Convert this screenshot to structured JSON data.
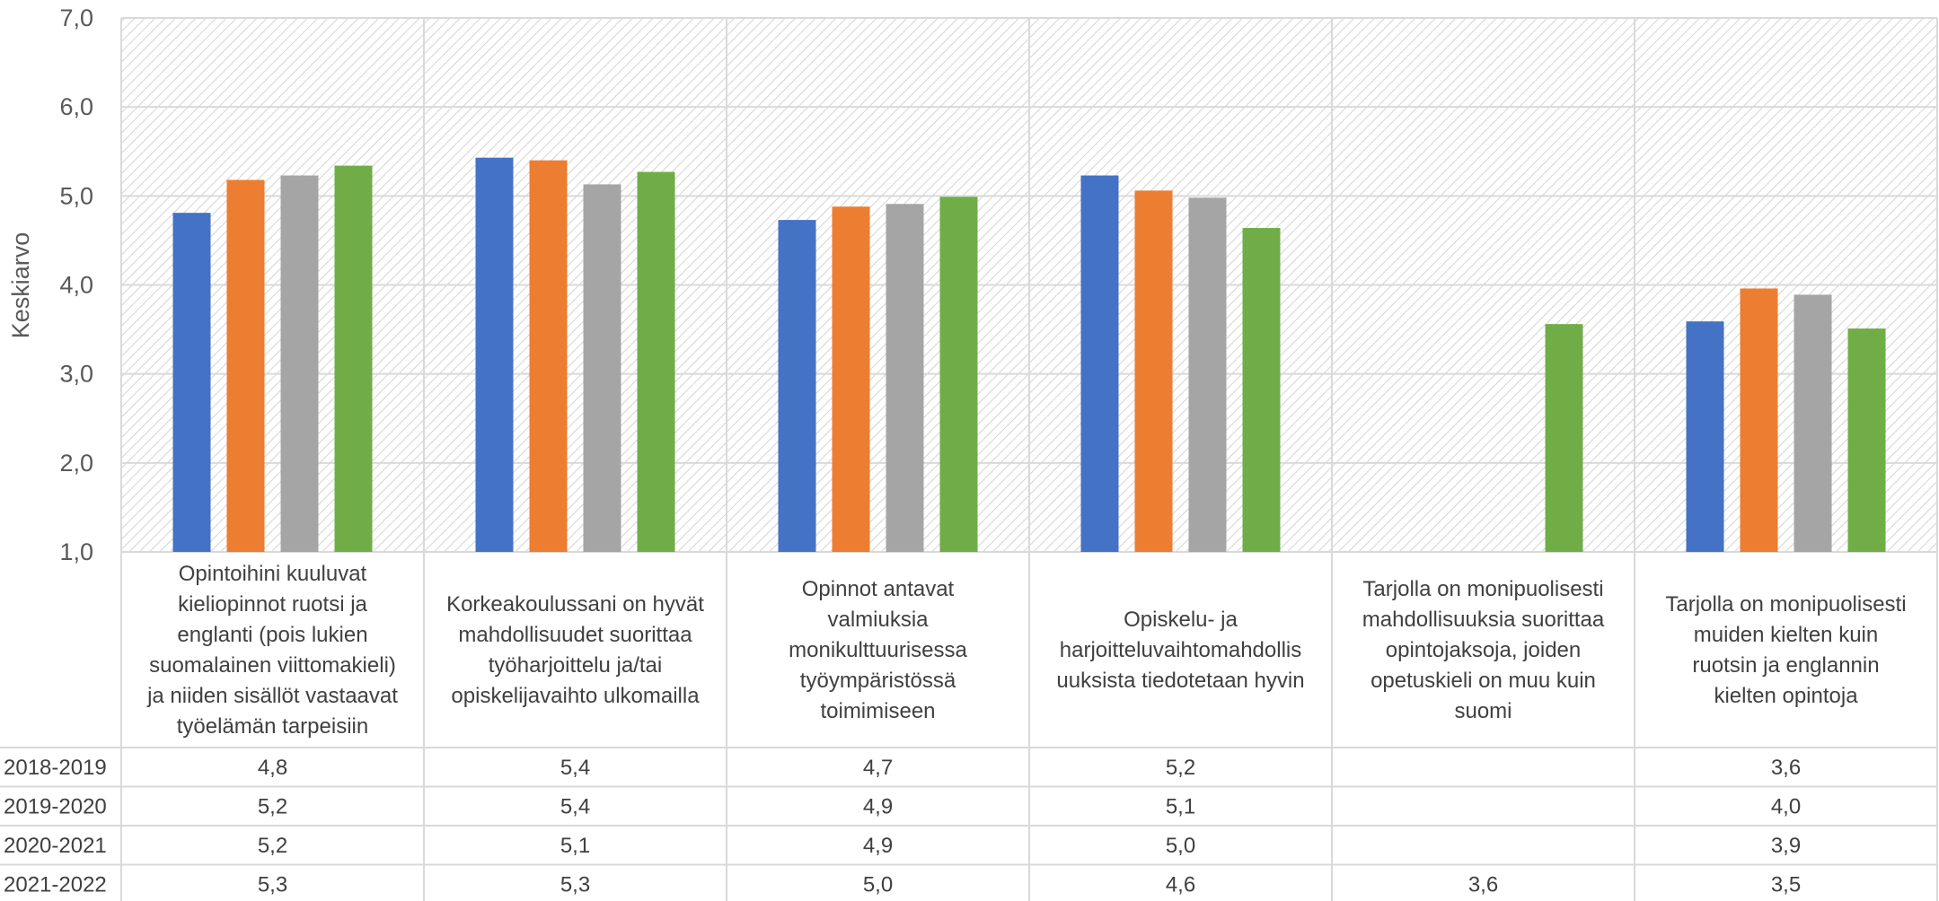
{
  "chart_data": {
    "type": "bar",
    "ylabel": "Keskiarvo",
    "ylim": [
      1.0,
      7.0
    ],
    "yticks": [
      "1,0",
      "2,0",
      "3,0",
      "4,0",
      "5,0",
      "6,0",
      "7,0"
    ],
    "grid": true,
    "categories": [
      [
        "Opintoihini kuuluvat",
        "kieliopinnot ruotsi ja",
        "englanti (pois lukien",
        "suomalainen viittomakieli)",
        "ja niiden sisällöt vastaavat",
        "työelämän tarpeisiin"
      ],
      [
        "Korkeakoulussani on hyvät",
        "mahdollisuudet suorittaa",
        "työharjoittelu ja/tai",
        "opiskelijavaihto ulkomailla"
      ],
      [
        "Opinnot antavat",
        "valmiuksia",
        "monikulttuurisessa",
        "työympäristössä",
        "toimimiseen"
      ],
      [
        "Opiskelu- ja",
        "harjoitteluvaihtomahdollis",
        "uuksista tiedotetaan hyvin"
      ],
      [
        "Tarjolla on monipuolisesti",
        "mahdollisuuksia suorittaa",
        "opintojaksoja, joiden",
        "opetuskieli on muu kuin",
        "suomi"
      ],
      [
        "Tarjolla on monipuolisesti",
        "muiden kielten kuin",
        "ruotsin ja englannin",
        "kielten opintoja"
      ]
    ],
    "series": [
      {
        "name": "2018-2019",
        "color": "#4472C4",
        "values": [
          4.81,
          5.43,
          4.73,
          5.23,
          null,
          3.59
        ],
        "labels": [
          "4,8",
          "5,4",
          "4,7",
          "5,2",
          "",
          "3,6"
        ]
      },
      {
        "name": "2019-2020",
        "color": "#ED7D31",
        "values": [
          5.18,
          5.4,
          4.88,
          5.06,
          null,
          3.96
        ],
        "labels": [
          "5,2",
          "5,4",
          "4,9",
          "5,1",
          "",
          "4,0"
        ]
      },
      {
        "name": "2020-2021",
        "color": "#A5A5A5",
        "values": [
          5.23,
          5.13,
          4.91,
          4.98,
          null,
          3.89
        ],
        "labels": [
          "5,2",
          "5,1",
          "4,9",
          "5,0",
          "",
          "3,9"
        ]
      },
      {
        "name": "2021-2022",
        "color": "#70AD47",
        "values": [
          5.34,
          5.27,
          4.99,
          4.64,
          3.56,
          3.51
        ],
        "labels": [
          "5,3",
          "5,3",
          "5,0",
          "4,6",
          "3,6",
          "3,5"
        ]
      }
    ]
  }
}
